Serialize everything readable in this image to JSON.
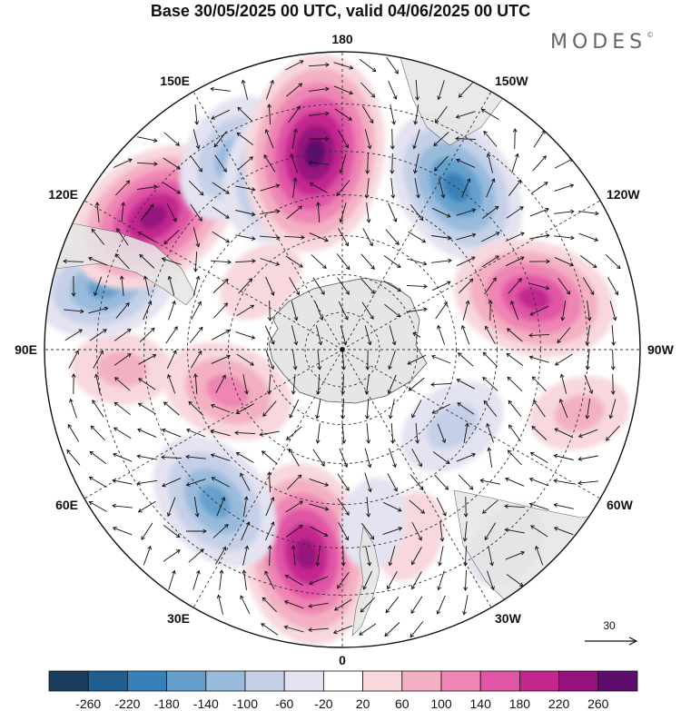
{
  "header": {
    "title": "Base 30/05/2025 00 UTC, valid 04/06/2025 00 UTC",
    "brand": "MODES",
    "brand_mark": "©"
  },
  "map": {
    "projection": "south-polar-stereographic",
    "longitude_labels": [
      {
        "text": "0",
        "lon": 0
      },
      {
        "text": "30E",
        "lon": 30
      },
      {
        "text": "60E",
        "lon": 60
      },
      {
        "text": "90E",
        "lon": 90
      },
      {
        "text": "120E",
        "lon": 120
      },
      {
        "text": "150E",
        "lon": 150
      },
      {
        "text": "180",
        "lon": 180
      },
      {
        "text": "150W",
        "lon": -150
      },
      {
        "text": "120W",
        "lon": -120
      },
      {
        "text": "90W",
        "lon": -90
      },
      {
        "text": "60W",
        "lon": -60
      },
      {
        "text": "30W",
        "lon": -30
      }
    ],
    "latitude_circles": [
      -80,
      -70,
      -60,
      -50,
      -40,
      -30
    ],
    "reference_vector": {
      "value": "30"
    },
    "anomaly_centers": [
      {
        "lon": 10,
        "lat": -38,
        "value": 240
      },
      {
        "lon": 40,
        "lat": -40,
        "value": -170
      },
      {
        "lon": 70,
        "lat": -58,
        "value": 140
      },
      {
        "lon": 85,
        "lat": -35,
        "value": 80
      },
      {
        "lon": 105,
        "lat": -30,
        "value": -160
      },
      {
        "lon": 125,
        "lat": -33,
        "value": 230
      },
      {
        "lon": 150,
        "lat": -35,
        "value": -140
      },
      {
        "lon": 160,
        "lat": -42,
        "value": -170
      },
      {
        "lon": 172,
        "lat": -40,
        "value": 270
      },
      {
        "lon": -145,
        "lat": -40,
        "value": -200
      },
      {
        "lon": -105,
        "lat": -40,
        "value": 200
      },
      {
        "lon": -55,
        "lat": -55,
        "value": -100
      },
      {
        "lon": -75,
        "lat": -30,
        "value": 80
      },
      {
        "lon": -20,
        "lat": -40,
        "value": 60
      },
      {
        "lon": -10,
        "lat": -45,
        "value": -60
      },
      {
        "lon": 130,
        "lat": -62,
        "value": 60
      },
      {
        "lon": -40,
        "lat": -28,
        "value": -60
      }
    ]
  },
  "colorbar": {
    "colors": [
      "#1a3d5c",
      "#1f5e8e",
      "#3880b8",
      "#65a0cc",
      "#98bbdc",
      "#c5d0e8",
      "#e3e3f1",
      "#ffffff",
      "#f8d8dd",
      "#f4b0c3",
      "#ee85b4",
      "#e055a6",
      "#c4258f",
      "#95127c",
      "#5c0d6e"
    ],
    "labels": [
      "-260",
      "-220",
      "-180",
      "-140",
      "-100",
      "-60",
      "-20",
      "20",
      "60",
      "100",
      "140",
      "180",
      "220",
      "260"
    ]
  }
}
